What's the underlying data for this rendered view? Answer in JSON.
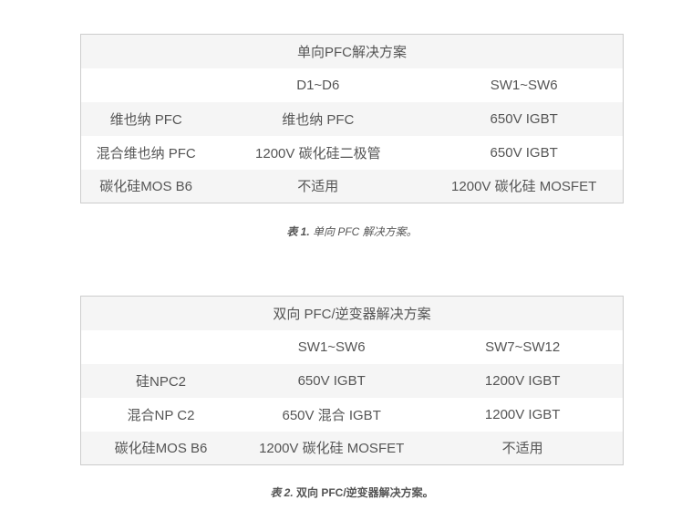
{
  "colors": {
    "stripe": "#f5f5f5",
    "border": "#cccccc",
    "text": "#555555",
    "background": "#ffffff"
  },
  "table1": {
    "title": "单向PFC解决方案",
    "columns": [
      "",
      "D1~D6",
      "SW1~SW6"
    ],
    "rows": [
      [
        "维也纳 PFC",
        "维也纳 PFC",
        "650V IGBT"
      ],
      [
        "混合维也纳 PFC",
        "1200V 碳化硅二极管",
        "650V IGBT"
      ],
      [
        "碳化硅MOS B6",
        "不适用",
        "1200V 碳化硅 MOSFET"
      ]
    ],
    "caption_label": "表 1.",
    "caption_text": "单向 PFC 解决方案。"
  },
  "table2": {
    "title": "双向 PFC/逆变器解决方案",
    "columns": [
      "",
      "SW1~SW6",
      "SW7~SW12"
    ],
    "rows": [
      [
        "硅NPC2",
        "650V IGBT",
        "1200V IGBT"
      ],
      [
        "混合NP C2",
        "650V 混合 IGBT",
        "1200V IGBT"
      ],
      [
        "碳化硅MOS B6",
        "1200V 碳化硅 MOSFET",
        "不适用"
      ]
    ],
    "caption_label": "表 2.",
    "caption_text": "双向 PFC/逆变器解决方案。"
  }
}
